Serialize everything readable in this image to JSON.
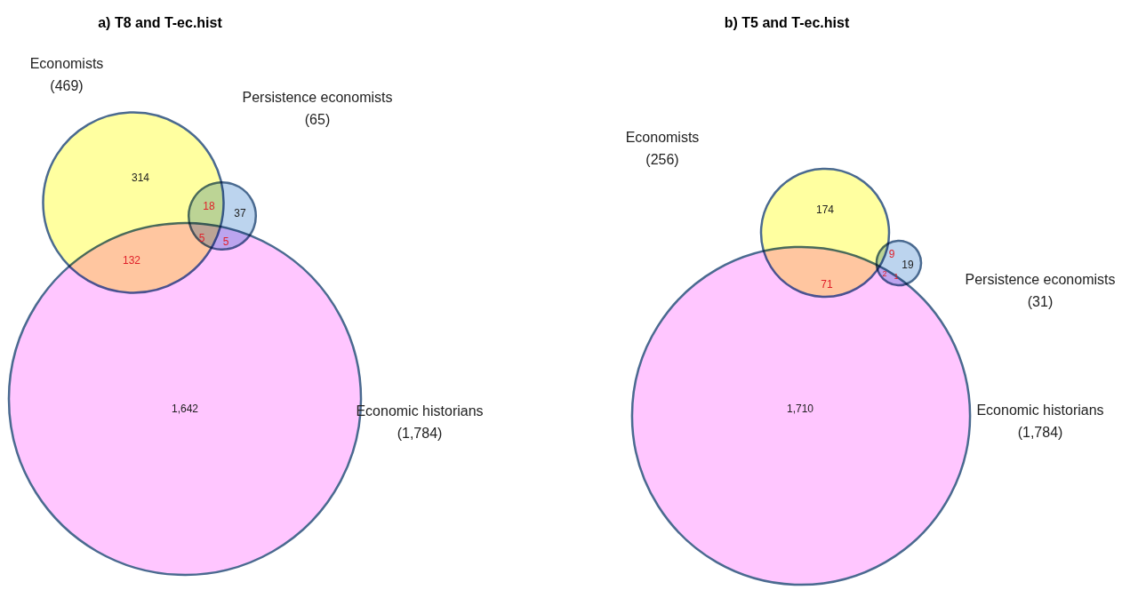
{
  "chart_data": [
    {
      "type": "other",
      "title": "a) T8 and T-ec.hist",
      "colors": [
        "#ffffa0",
        "#bcd4ee",
        "#ffc6ff"
      ],
      "series": [
        {
          "name": "Economists",
          "values": [
            469
          ],
          "value_labels": [
            "(469)"
          ]
        },
        {
          "name": "Persistence economists",
          "values": [
            65
          ],
          "value_labels": [
            "(65)"
          ]
        },
        {
          "name": "Economic historians",
          "values": [
            1784
          ],
          "value_labels": [
            "(1,784)"
          ]
        }
      ],
      "annotations": [
        "314",
        "37",
        "1,642",
        "18",
        "132",
        "5",
        "5"
      ]
    },
    {
      "type": "other",
      "title": "b) T5 and T-ec.hist",
      "colors": [
        "#ffffa0",
        "#bcd4ee",
        "#ffc6ff"
      ],
      "series": [
        {
          "name": "Economists",
          "values": [
            256
          ],
          "value_labels": [
            "(256)"
          ]
        },
        {
          "name": "Persistence economists",
          "values": [
            31
          ],
          "value_labels": [
            "(31)"
          ]
        },
        {
          "name": "Economic historians",
          "values": [
            1784
          ],
          "value_labels": [
            "(1,784)"
          ]
        }
      ],
      "annotations": [
        "174",
        "19",
        "1,710",
        "9",
        "71",
        "1",
        "2"
      ]
    }
  ]
}
